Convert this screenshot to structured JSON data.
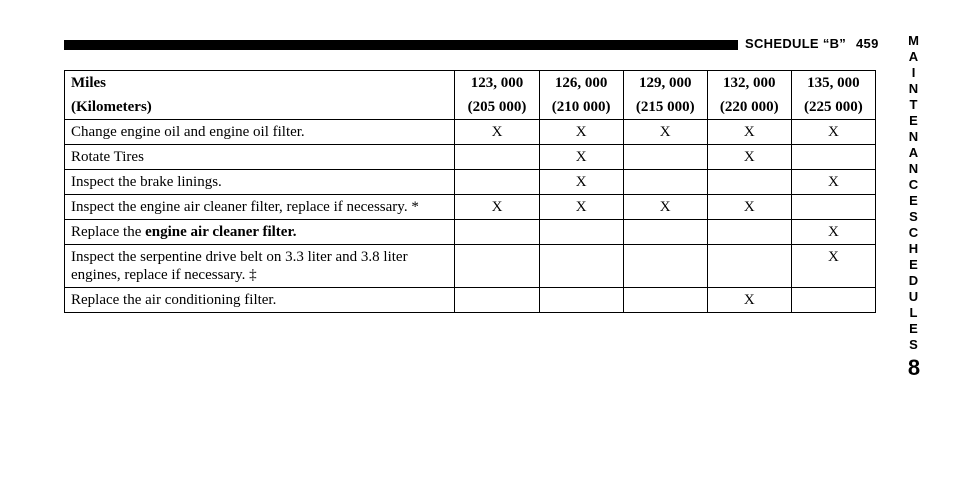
{
  "header": {
    "title": "SCHEDULE “B”",
    "page_number": "459"
  },
  "side_tab": {
    "line1": "MAINTENANCE",
    "line2": "SCHEDULES",
    "chapter": "8"
  },
  "table": {
    "head_labels": {
      "desc_miles": "Miles",
      "desc_km": "(Kilometers)"
    },
    "columns": [
      {
        "miles": "123, 000",
        "km": "(205 000)"
      },
      {
        "miles": "126, 000",
        "km": "(210 000)"
      },
      {
        "miles": "129, 000",
        "km": "(215 000)"
      },
      {
        "miles": "132, 000",
        "km": "(220 000)"
      },
      {
        "miles": "135, 000",
        "km": "(225 000)"
      }
    ],
    "rows": [
      {
        "desc_html": "Change engine oil and engine oil filter.",
        "marks": [
          "X",
          "X",
          "X",
          "X",
          "X"
        ]
      },
      {
        "desc_html": "Rotate Tires",
        "marks": [
          "",
          "X",
          "",
          "X",
          ""
        ]
      },
      {
        "desc_html": "Inspect the brake linings.",
        "marks": [
          "",
          "X",
          "",
          "",
          "X"
        ]
      },
      {
        "desc_html": "Inspect the engine air cleaner filter, replace if necessary. *",
        "marks": [
          "X",
          "X",
          "X",
          "X",
          ""
        ]
      },
      {
        "desc_html": "Replace the <span class=\"b\">engine air cleaner filter.</span>",
        "marks": [
          "",
          "",
          "",
          "",
          "X"
        ]
      },
      {
        "desc_html": "Inspect the serpentine drive belt on 3.3 liter and 3.8 liter engines, replace if necessary. ‡",
        "marks": [
          "",
          "",
          "",
          "",
          "X"
        ]
      },
      {
        "desc_html": "Replace the air conditioning filter.",
        "marks": [
          "",
          "",
          "",
          "X",
          ""
        ]
      }
    ]
  }
}
